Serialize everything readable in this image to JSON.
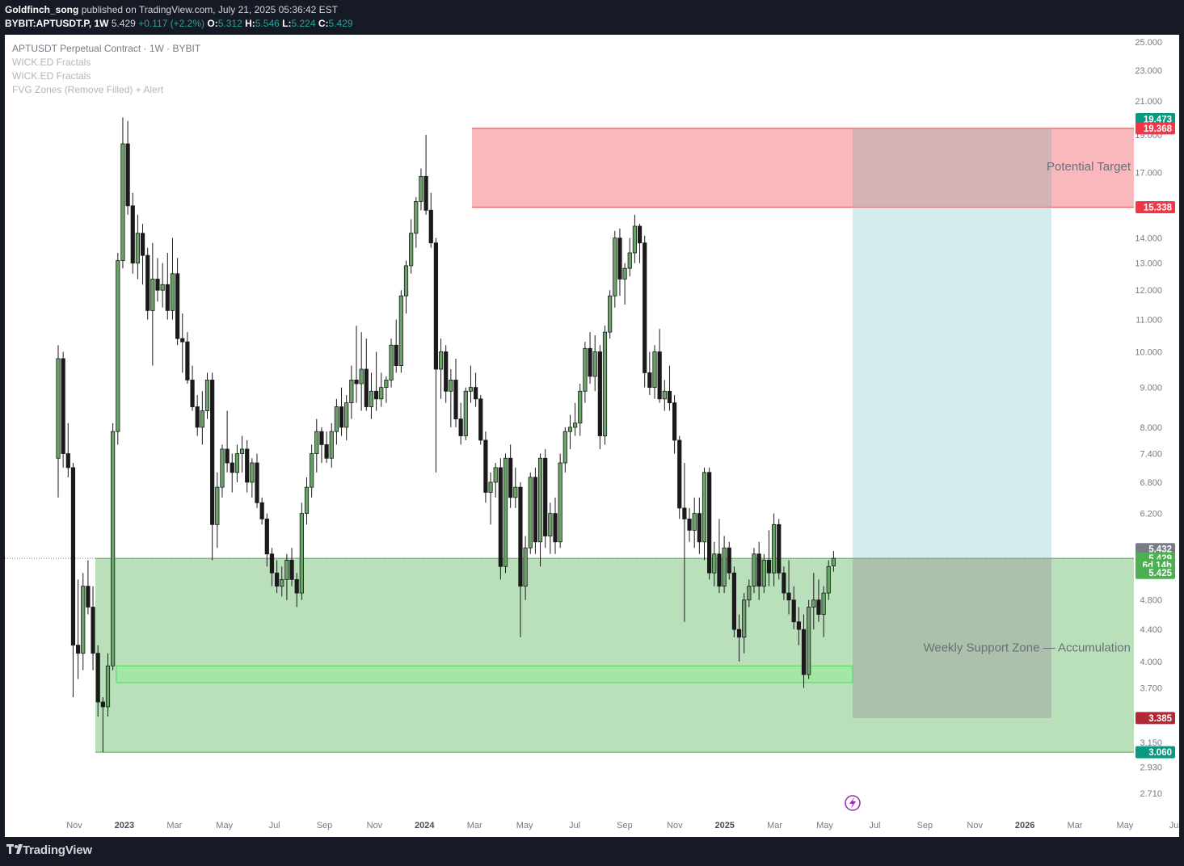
{
  "header": {
    "author": "Goldfinch_song",
    "published": "published on TradingView.com, July 21, 2025 05:36:42 EST",
    "symbol": "BYBIT:APTUSDT.P, 1W",
    "last": "5.429",
    "change": "+0.117 (+2.2%)",
    "o_label": "O:",
    "o": "5.312",
    "h_label": "H:",
    "h": "5.546",
    "l_label": "L:",
    "l": "5.224",
    "c_label": "C:",
    "c": "5.429"
  },
  "legend": {
    "title": "APTUSDT Perpetual Contract · 1W · BYBIT",
    "ind1": "WICK.ED Fractals",
    "ind2": "WICK.ED Fractals",
    "ind3": "FVG Zones (Remove Filled) + Alert"
  },
  "footer": {
    "brand": "TradingView"
  },
  "colors": {
    "up_candle": "#6aa36a",
    "down_candle": "#1a1a1a",
    "resistance": "#f8b4b8",
    "support": "#b9dfbb",
    "target_area": "#d6ecec"
  },
  "chart_data": {
    "type": "candlestick",
    "scale": "log",
    "y_ticks": [
      "25.000",
      "23.000",
      "21.000",
      "19.000",
      "17.000",
      "14.000",
      "13.000",
      "12.000",
      "11.000",
      "10.000",
      "9.000",
      "8.000",
      "7.400",
      "6.800",
      "6.200",
      "5.200",
      "4.800",
      "4.400",
      "4.000",
      "3.700",
      "3.150",
      "2.930",
      "2.710"
    ],
    "x_ticks": [
      {
        "label": "Nov",
        "year": false
      },
      {
        "label": "2023",
        "year": true
      },
      {
        "label": "Mar",
        "year": false
      },
      {
        "label": "May",
        "year": false
      },
      {
        "label": "Jul",
        "year": false
      },
      {
        "label": "Sep",
        "year": false
      },
      {
        "label": "Nov",
        "year": false
      },
      {
        "label": "2024",
        "year": true
      },
      {
        "label": "Mar",
        "year": false
      },
      {
        "label": "May",
        "year": false
      },
      {
        "label": "Jul",
        "year": false
      },
      {
        "label": "Sep",
        "year": false
      },
      {
        "label": "Nov",
        "year": false
      },
      {
        "label": "2025",
        "year": true
      },
      {
        "label": "Mar",
        "year": false
      },
      {
        "label": "May",
        "year": false
      },
      {
        "label": "Jul",
        "year": false
      },
      {
        "label": "Sep",
        "year": false
      },
      {
        "label": "Nov",
        "year": false
      },
      {
        "label": "2026",
        "year": true
      },
      {
        "label": "Mar",
        "year": false
      },
      {
        "label": "May",
        "year": false
      },
      {
        "label": "Jul",
        "year": false
      }
    ],
    "zones": [
      {
        "name": "Potential Target",
        "low": 15.338,
        "high": 19.368
      },
      {
        "name": "Weekly Support Zone — Accumulation",
        "low": 3.06,
        "high": 5.429
      },
      {
        "name": "",
        "low": 3.76,
        "high": 3.95
      }
    ],
    "price_tags": [
      {
        "value": "19.473",
        "color": "#089981"
      },
      {
        "value": "19.368",
        "color": "#f23645"
      },
      {
        "value": "15.338",
        "color": "#f23645"
      },
      {
        "value": "5.432",
        "color": "#787b86"
      },
      {
        "value": "5.429",
        "color": "#4caf50"
      },
      {
        "value": "6d 14h",
        "color": "#4caf50"
      },
      {
        "value": "5.425",
        "color": "#4caf50"
      },
      {
        "value": "3.385",
        "color": "#b22833"
      },
      {
        "value": "3.060",
        "color": "#089981"
      }
    ],
    "candles": [
      {
        "o": 7.3,
        "h": 10.2,
        "l": 6.5,
        "c": 9.8
      },
      {
        "o": 9.8,
        "h": 10.0,
        "l": 7.1,
        "c": 7.4
      },
      {
        "o": 7.4,
        "h": 8.1,
        "l": 6.9,
        "c": 7.1
      },
      {
        "o": 7.1,
        "h": 7.2,
        "l": 3.6,
        "c": 4.2
      },
      {
        "o": 4.2,
        "h": 5.1,
        "l": 3.8,
        "c": 4.1
      },
      {
        "o": 4.1,
        "h": 5.2,
        "l": 3.9,
        "c": 5.0
      },
      {
        "o": 5.0,
        "h": 5.4,
        "l": 4.6,
        "c": 4.7
      },
      {
        "o": 4.7,
        "h": 5.0,
        "l": 3.9,
        "c": 4.1
      },
      {
        "o": 4.1,
        "h": 4.2,
        "l": 3.4,
        "c": 3.55
      },
      {
        "o": 3.55,
        "h": 3.6,
        "l": 3.06,
        "c": 3.5
      },
      {
        "o": 3.5,
        "h": 4.1,
        "l": 3.4,
        "c": 3.95
      },
      {
        "o": 3.95,
        "h": 8.1,
        "l": 3.9,
        "c": 7.9
      },
      {
        "o": 7.9,
        "h": 13.4,
        "l": 7.6,
        "c": 13.1
      },
      {
        "o": 13.1,
        "h": 20.0,
        "l": 12.8,
        "c": 18.5
      },
      {
        "o": 18.5,
        "h": 19.8,
        "l": 15.0,
        "c": 15.4
      },
      {
        "o": 15.4,
        "h": 16.0,
        "l": 12.6,
        "c": 13.0
      },
      {
        "o": 13.0,
        "h": 15.0,
        "l": 12.4,
        "c": 14.2
      },
      {
        "o": 14.2,
        "h": 14.6,
        "l": 12.2,
        "c": 13.3
      },
      {
        "o": 13.3,
        "h": 13.6,
        "l": 11.0,
        "c": 11.3
      },
      {
        "o": 11.3,
        "h": 13.8,
        "l": 9.6,
        "c": 12.4
      },
      {
        "o": 12.4,
        "h": 13.2,
        "l": 11.6,
        "c": 12.0
      },
      {
        "o": 12.0,
        "h": 13.0,
        "l": 11.4,
        "c": 12.2
      },
      {
        "o": 12.2,
        "h": 13.4,
        "l": 11.0,
        "c": 11.3
      },
      {
        "o": 11.3,
        "h": 14.0,
        "l": 11.0,
        "c": 12.6
      },
      {
        "o": 12.6,
        "h": 13.2,
        "l": 10.2,
        "c": 10.4
      },
      {
        "o": 10.4,
        "h": 11.2,
        "l": 9.4,
        "c": 10.3
      },
      {
        "o": 10.3,
        "h": 10.6,
        "l": 9.1,
        "c": 9.2
      },
      {
        "o": 9.2,
        "h": 9.6,
        "l": 8.4,
        "c": 8.5
      },
      {
        "o": 8.5,
        "h": 8.8,
        "l": 7.8,
        "c": 8.0
      },
      {
        "o": 8.0,
        "h": 8.9,
        "l": 7.6,
        "c": 8.4
      },
      {
        "o": 8.4,
        "h": 9.4,
        "l": 8.2,
        "c": 9.2
      },
      {
        "o": 9.2,
        "h": 9.4,
        "l": 5.4,
        "c": 6.0
      },
      {
        "o": 6.0,
        "h": 7.0,
        "l": 5.6,
        "c": 6.7
      },
      {
        "o": 6.7,
        "h": 7.6,
        "l": 6.5,
        "c": 7.5
      },
      {
        "o": 7.5,
        "h": 8.4,
        "l": 7.0,
        "c": 7.2
      },
      {
        "o": 7.2,
        "h": 7.4,
        "l": 6.6,
        "c": 7.0
      },
      {
        "o": 7.0,
        "h": 7.6,
        "l": 6.8,
        "c": 7.4
      },
      {
        "o": 7.4,
        "h": 7.8,
        "l": 7.0,
        "c": 7.5
      },
      {
        "o": 7.5,
        "h": 7.7,
        "l": 6.6,
        "c": 6.8
      },
      {
        "o": 6.8,
        "h": 7.3,
        "l": 6.5,
        "c": 7.2
      },
      {
        "o": 7.2,
        "h": 7.4,
        "l": 6.3,
        "c": 6.4
      },
      {
        "o": 6.4,
        "h": 6.5,
        "l": 6.0,
        "c": 6.1
      },
      {
        "o": 6.1,
        "h": 6.2,
        "l": 5.3,
        "c": 5.5
      },
      {
        "o": 5.5,
        "h": 5.6,
        "l": 5.0,
        "c": 5.2
      },
      {
        "o": 5.2,
        "h": 5.4,
        "l": 4.9,
        "c": 5.0
      },
      {
        "o": 5.0,
        "h": 5.3,
        "l": 4.85,
        "c": 5.1
      },
      {
        "o": 5.1,
        "h": 5.5,
        "l": 4.8,
        "c": 5.4
      },
      {
        "o": 5.4,
        "h": 5.6,
        "l": 5.0,
        "c": 5.1
      },
      {
        "o": 5.1,
        "h": 5.2,
        "l": 4.7,
        "c": 4.9
      },
      {
        "o": 4.9,
        "h": 6.4,
        "l": 4.8,
        "c": 6.2
      },
      {
        "o": 6.2,
        "h": 6.9,
        "l": 6.0,
        "c": 6.7
      },
      {
        "o": 6.7,
        "h": 7.6,
        "l": 6.5,
        "c": 7.4
      },
      {
        "o": 7.4,
        "h": 8.2,
        "l": 7.0,
        "c": 7.9
      },
      {
        "o": 7.9,
        "h": 8.0,
        "l": 7.2,
        "c": 7.6
      },
      {
        "o": 7.6,
        "h": 7.9,
        "l": 7.2,
        "c": 7.3
      },
      {
        "o": 7.3,
        "h": 8.1,
        "l": 7.1,
        "c": 7.9
      },
      {
        "o": 7.9,
        "h": 8.7,
        "l": 7.6,
        "c": 8.5
      },
      {
        "o": 8.5,
        "h": 9.0,
        "l": 7.8,
        "c": 8.0
      },
      {
        "o": 8.0,
        "h": 8.8,
        "l": 7.7,
        "c": 8.6
      },
      {
        "o": 8.6,
        "h": 9.6,
        "l": 8.2,
        "c": 9.2
      },
      {
        "o": 9.2,
        "h": 10.8,
        "l": 8.6,
        "c": 9.1
      },
      {
        "o": 9.1,
        "h": 10.6,
        "l": 8.4,
        "c": 9.5
      },
      {
        "o": 9.5,
        "h": 10.4,
        "l": 8.4,
        "c": 8.5
      },
      {
        "o": 8.5,
        "h": 9.4,
        "l": 8.2,
        "c": 8.9
      },
      {
        "o": 8.9,
        "h": 10.0,
        "l": 8.4,
        "c": 8.7
      },
      {
        "o": 8.7,
        "h": 9.4,
        "l": 8.5,
        "c": 9.0
      },
      {
        "o": 9.0,
        "h": 9.3,
        "l": 8.6,
        "c": 9.2
      },
      {
        "o": 9.2,
        "h": 10.4,
        "l": 9.0,
        "c": 10.2
      },
      {
        "o": 10.2,
        "h": 11.0,
        "l": 9.4,
        "c": 9.6
      },
      {
        "o": 9.6,
        "h": 12.0,
        "l": 9.4,
        "c": 11.8
      },
      {
        "o": 11.8,
        "h": 13.1,
        "l": 11.2,
        "c": 12.9
      },
      {
        "o": 12.9,
        "h": 14.8,
        "l": 12.6,
        "c": 14.2
      },
      {
        "o": 14.2,
        "h": 15.8,
        "l": 13.6,
        "c": 15.6
      },
      {
        "o": 15.6,
        "h": 17.2,
        "l": 15.2,
        "c": 16.8
      },
      {
        "o": 16.8,
        "h": 19.0,
        "l": 15.0,
        "c": 15.2
      },
      {
        "o": 15.2,
        "h": 16.0,
        "l": 13.6,
        "c": 13.8
      },
      {
        "o": 13.8,
        "h": 14.0,
        "l": 7.0,
        "c": 9.5
      },
      {
        "o": 9.5,
        "h": 10.4,
        "l": 8.7,
        "c": 10.0
      },
      {
        "o": 10.0,
        "h": 10.2,
        "l": 8.6,
        "c": 8.9
      },
      {
        "o": 8.9,
        "h": 9.5,
        "l": 8.0,
        "c": 9.2
      },
      {
        "o": 9.2,
        "h": 9.8,
        "l": 8.0,
        "c": 8.2
      },
      {
        "o": 8.2,
        "h": 8.6,
        "l": 7.6,
        "c": 7.8
      },
      {
        "o": 7.8,
        "h": 9.0,
        "l": 7.7,
        "c": 8.9
      },
      {
        "o": 8.9,
        "h": 9.6,
        "l": 8.6,
        "c": 9.0
      },
      {
        "o": 9.0,
        "h": 9.4,
        "l": 8.5,
        "c": 8.7
      },
      {
        "o": 8.7,
        "h": 8.8,
        "l": 7.6,
        "c": 7.7
      },
      {
        "o": 7.7,
        "h": 7.9,
        "l": 6.4,
        "c": 6.6
      },
      {
        "o": 6.6,
        "h": 7.0,
        "l": 6.0,
        "c": 6.8
      },
      {
        "o": 6.8,
        "h": 7.2,
        "l": 6.5,
        "c": 7.1
      },
      {
        "o": 7.1,
        "h": 7.3,
        "l": 5.1,
        "c": 5.3
      },
      {
        "o": 5.3,
        "h": 7.4,
        "l": 5.2,
        "c": 7.3
      },
      {
        "o": 7.3,
        "h": 7.6,
        "l": 6.3,
        "c": 6.5
      },
      {
        "o": 6.5,
        "h": 7.1,
        "l": 6.3,
        "c": 6.7
      },
      {
        "o": 6.7,
        "h": 6.8,
        "l": 4.3,
        "c": 5.0
      },
      {
        "o": 5.0,
        "h": 5.8,
        "l": 4.8,
        "c": 5.6
      },
      {
        "o": 5.6,
        "h": 7.0,
        "l": 5.5,
        "c": 6.9
      },
      {
        "o": 6.9,
        "h": 7.1,
        "l": 5.5,
        "c": 5.7
      },
      {
        "o": 5.7,
        "h": 7.4,
        "l": 5.3,
        "c": 7.3
      },
      {
        "o": 7.3,
        "h": 7.5,
        "l": 5.6,
        "c": 5.8
      },
      {
        "o": 5.8,
        "h": 6.4,
        "l": 5.5,
        "c": 6.2
      },
      {
        "o": 6.2,
        "h": 6.5,
        "l": 5.5,
        "c": 5.7
      },
      {
        "o": 5.7,
        "h": 7.4,
        "l": 5.6,
        "c": 7.2
      },
      {
        "o": 7.2,
        "h": 8.0,
        "l": 7.0,
        "c": 7.9
      },
      {
        "o": 7.9,
        "h": 8.3,
        "l": 7.5,
        "c": 8.0
      },
      {
        "o": 8.0,
        "h": 8.6,
        "l": 7.8,
        "c": 8.1
      },
      {
        "o": 8.1,
        "h": 9.1,
        "l": 7.8,
        "c": 8.9
      },
      {
        "o": 8.9,
        "h": 10.3,
        "l": 8.6,
        "c": 10.1
      },
      {
        "o": 10.1,
        "h": 10.6,
        "l": 9.1,
        "c": 9.3
      },
      {
        "o": 9.3,
        "h": 10.5,
        "l": 8.9,
        "c": 10.0
      },
      {
        "o": 10.0,
        "h": 10.2,
        "l": 7.5,
        "c": 7.8
      },
      {
        "o": 7.8,
        "h": 10.8,
        "l": 7.6,
        "c": 10.6
      },
      {
        "o": 10.6,
        "h": 12.0,
        "l": 10.4,
        "c": 11.8
      },
      {
        "o": 11.8,
        "h": 14.3,
        "l": 11.4,
        "c": 14.0
      },
      {
        "o": 14.0,
        "h": 14.4,
        "l": 11.8,
        "c": 12.4
      },
      {
        "o": 12.4,
        "h": 13.0,
        "l": 11.5,
        "c": 12.8
      },
      {
        "o": 12.8,
        "h": 14.0,
        "l": 12.5,
        "c": 13.4
      },
      {
        "o": 13.4,
        "h": 15.0,
        "l": 13.0,
        "c": 14.5
      },
      {
        "o": 14.5,
        "h": 14.6,
        "l": 13.0,
        "c": 13.8
      },
      {
        "o": 13.8,
        "h": 14.1,
        "l": 9.0,
        "c": 9.4
      },
      {
        "o": 9.4,
        "h": 10.0,
        "l": 8.8,
        "c": 9.0
      },
      {
        "o": 9.0,
        "h": 10.2,
        "l": 8.7,
        "c": 10.0
      },
      {
        "o": 10.0,
        "h": 10.7,
        "l": 8.6,
        "c": 8.7
      },
      {
        "o": 8.7,
        "h": 9.2,
        "l": 8.4,
        "c": 8.9
      },
      {
        "o": 8.9,
        "h": 9.6,
        "l": 8.4,
        "c": 8.6
      },
      {
        "o": 8.6,
        "h": 8.8,
        "l": 7.4,
        "c": 7.7
      },
      {
        "o": 7.7,
        "h": 7.8,
        "l": 6.1,
        "c": 6.3
      },
      {
        "o": 6.3,
        "h": 7.2,
        "l": 4.5,
        "c": 6.1
      },
      {
        "o": 6.1,
        "h": 6.3,
        "l": 5.7,
        "c": 5.9
      },
      {
        "o": 5.9,
        "h": 6.5,
        "l": 5.6,
        "c": 6.2
      },
      {
        "o": 6.2,
        "h": 6.5,
        "l": 5.5,
        "c": 5.7
      },
      {
        "o": 5.7,
        "h": 7.1,
        "l": 5.4,
        "c": 7.0
      },
      {
        "o": 7.0,
        "h": 7.1,
        "l": 5.1,
        "c": 5.2
      },
      {
        "o": 5.2,
        "h": 5.7,
        "l": 5.0,
        "c": 5.5
      },
      {
        "o": 5.5,
        "h": 6.1,
        "l": 4.9,
        "c": 5.0
      },
      {
        "o": 5.0,
        "h": 5.8,
        "l": 4.9,
        "c": 5.6
      },
      {
        "o": 5.6,
        "h": 5.7,
        "l": 5.1,
        "c": 5.2
      },
      {
        "o": 5.2,
        "h": 5.3,
        "l": 4.3,
        "c": 4.4
      },
      {
        "o": 4.4,
        "h": 4.6,
        "l": 4.0,
        "c": 4.3
      },
      {
        "o": 4.3,
        "h": 4.9,
        "l": 4.1,
        "c": 4.8
      },
      {
        "o": 4.8,
        "h": 5.1,
        "l": 4.7,
        "c": 5.0
      },
      {
        "o": 5.0,
        "h": 5.6,
        "l": 4.9,
        "c": 5.5
      },
      {
        "o": 5.5,
        "h": 5.7,
        "l": 4.8,
        "c": 5.0
      },
      {
        "o": 5.0,
        "h": 5.5,
        "l": 4.9,
        "c": 5.4
      },
      {
        "o": 5.4,
        "h": 5.9,
        "l": 5.0,
        "c": 5.2
      },
      {
        "o": 5.2,
        "h": 6.2,
        "l": 5.0,
        "c": 6.0
      },
      {
        "o": 6.0,
        "h": 6.1,
        "l": 5.1,
        "c": 5.2
      },
      {
        "o": 5.2,
        "h": 5.3,
        "l": 4.8,
        "c": 4.9
      },
      {
        "o": 4.9,
        "h": 5.4,
        "l": 4.6,
        "c": 4.8
      },
      {
        "o": 4.8,
        "h": 5.0,
        "l": 4.4,
        "c": 4.5
      },
      {
        "o": 4.5,
        "h": 4.7,
        "l": 4.2,
        "c": 4.4
      },
      {
        "o": 4.4,
        "h": 4.6,
        "l": 3.7,
        "c": 3.85
      },
      {
        "o": 3.85,
        "h": 4.8,
        "l": 3.8,
        "c": 4.7
      },
      {
        "o": 4.7,
        "h": 5.2,
        "l": 4.4,
        "c": 4.8
      },
      {
        "o": 4.8,
        "h": 5.1,
        "l": 4.5,
        "c": 4.6
      },
      {
        "o": 4.6,
        "h": 5.0,
        "l": 4.3,
        "c": 4.9
      },
      {
        "o": 4.9,
        "h": 5.4,
        "l": 4.8,
        "c": 5.3
      },
      {
        "o": 5.31,
        "h": 5.55,
        "l": 5.22,
        "c": 5.43
      }
    ]
  }
}
